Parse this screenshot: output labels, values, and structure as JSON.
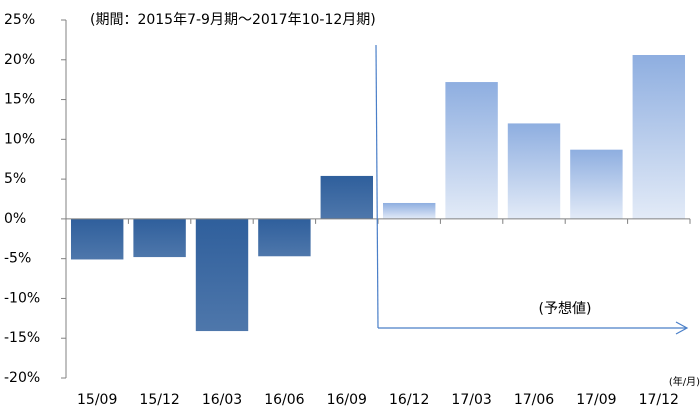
{
  "chart_data": {
    "type": "bar",
    "subtitle": "(期間：2015年7-9月期〜2017年10-12月期)",
    "annotation": "(予想値)",
    "x_unit_label": "(年/月)",
    "categories": [
      "15/09",
      "15/12",
      "16/03",
      "16/06",
      "16/09",
      "16/12",
      "17/03",
      "17/06",
      "17/09",
      "17/12"
    ],
    "values": [
      -5.1,
      -4.8,
      -14.1,
      -4.7,
      5.4,
      2.0,
      17.2,
      12.0,
      8.7,
      20.6
    ],
    "colors": [
      "#2f5f9c",
      "#2f5f9c",
      "#2f5f9c",
      "#2f5f9c",
      "#2f5f9c",
      "#8eaee0",
      "#8eaee0",
      "#8eaee0",
      "#8eaee0",
      "#8eaee0"
    ],
    "ylim": [
      -20,
      25
    ],
    "yticks": [
      {
        "value": -20,
        "label": "-20%"
      },
      {
        "value": -15,
        "label": "-15%"
      },
      {
        "value": -10,
        "label": "-10%"
      },
      {
        "value": -5,
        "label": "-5%"
      },
      {
        "value": 0,
        "label": "0%"
      },
      {
        "value": 5,
        "label": "5%"
      },
      {
        "value": 10,
        "label": "10%"
      },
      {
        "value": 15,
        "label": "15%"
      },
      {
        "value": 20,
        "label": "20%"
      },
      {
        "value": 25,
        "label": "25%"
      }
    ],
    "grid": false
  }
}
